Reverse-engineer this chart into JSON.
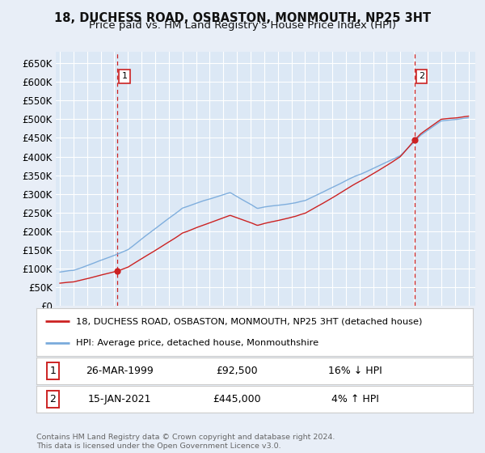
{
  "title": "18, DUCHESS ROAD, OSBASTON, MONMOUTH, NP25 3HT",
  "subtitle": "Price paid vs. HM Land Registry's House Price Index (HPI)",
  "legend_line1": "18, DUCHESS ROAD, OSBASTON, MONMOUTH, NP25 3HT (detached house)",
  "legend_line2": "HPI: Average price, detached house, Monmouthshire",
  "annotation1_date": "26-MAR-1999",
  "annotation1_price": "£92,500",
  "annotation1_hpi": "16% ↓ HPI",
  "annotation2_date": "15-JAN-2021",
  "annotation2_price": "£445,000",
  "annotation2_hpi": "4% ↑ HPI",
  "footnote": "Contains HM Land Registry data © Crown copyright and database right 2024.\nThis data is licensed under the Open Government Licence v3.0.",
  "sale1_year": 1999.23,
  "sale1_price": 92500,
  "sale2_year": 2021.04,
  "sale2_price": 445000,
  "hpi_color": "#7aabdc",
  "price_color": "#cc2222",
  "background_color": "#e8eef7",
  "plot_bg": "#dce8f5",
  "grid_color": "#ffffff",
  "ylim": [
    0,
    680000
  ],
  "yticks": [
    0,
    50000,
    100000,
    150000,
    200000,
    250000,
    300000,
    350000,
    400000,
    450000,
    500000,
    550000,
    600000,
    650000
  ],
  "xmin": 1994.7,
  "xmax": 2025.5,
  "title_fontsize": 10.5,
  "subtitle_fontsize": 9.5,
  "axis_fontsize": 8.5
}
